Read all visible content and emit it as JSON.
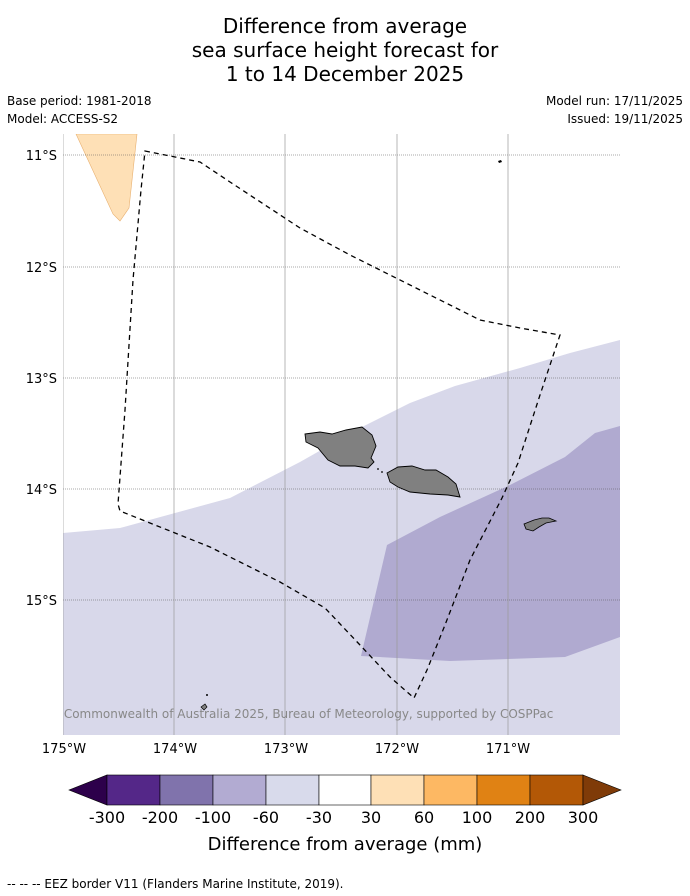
{
  "title": {
    "line1": "Difference from average",
    "line2": "sea surface height forecast for",
    "line3": "1 to 14 December 2025"
  },
  "meta": {
    "base_period": "Base period: 1981-2018",
    "model": "Model: ACCESS-S2",
    "model_run": "Model run: 17/11/2025",
    "issued": "Issued: 19/11/2025"
  },
  "map": {
    "lat_labels": [
      "11°S",
      "12°S",
      "13°S",
      "14°S",
      "15°S"
    ],
    "lon_labels": [
      "175°W",
      "174°W",
      "173°W",
      "172°W",
      "171°W"
    ],
    "copyright": "© Commonwealth of Australia 2025, Bureau of Meteorology, supported by COSPPac",
    "colors": {
      "land": "#808080",
      "band_neg_30_60": "#d8d8ea",
      "band_neg_60_100": "#b0aad0",
      "band_pos_30_60": "#fee0b6",
      "eez_line": "#000000"
    }
  },
  "colorbar": {
    "tick_labels": [
      "-300",
      "-200",
      "-100",
      "-60",
      "-30",
      "30",
      "60",
      "100",
      "200",
      "300"
    ],
    "colors": [
      "#2d004b",
      "#542788",
      "#8073ac",
      "#b2abd2",
      "#d8daeb",
      "#ffffff",
      "#fee0b6",
      "#fdb863",
      "#e08214",
      "#b35806",
      "#7f3b08"
    ],
    "label": "Difference from average (mm)"
  },
  "footer": {
    "legend_text": "-- -- -- EEZ border V11 (Flanders Marine Institute, 2019)."
  }
}
